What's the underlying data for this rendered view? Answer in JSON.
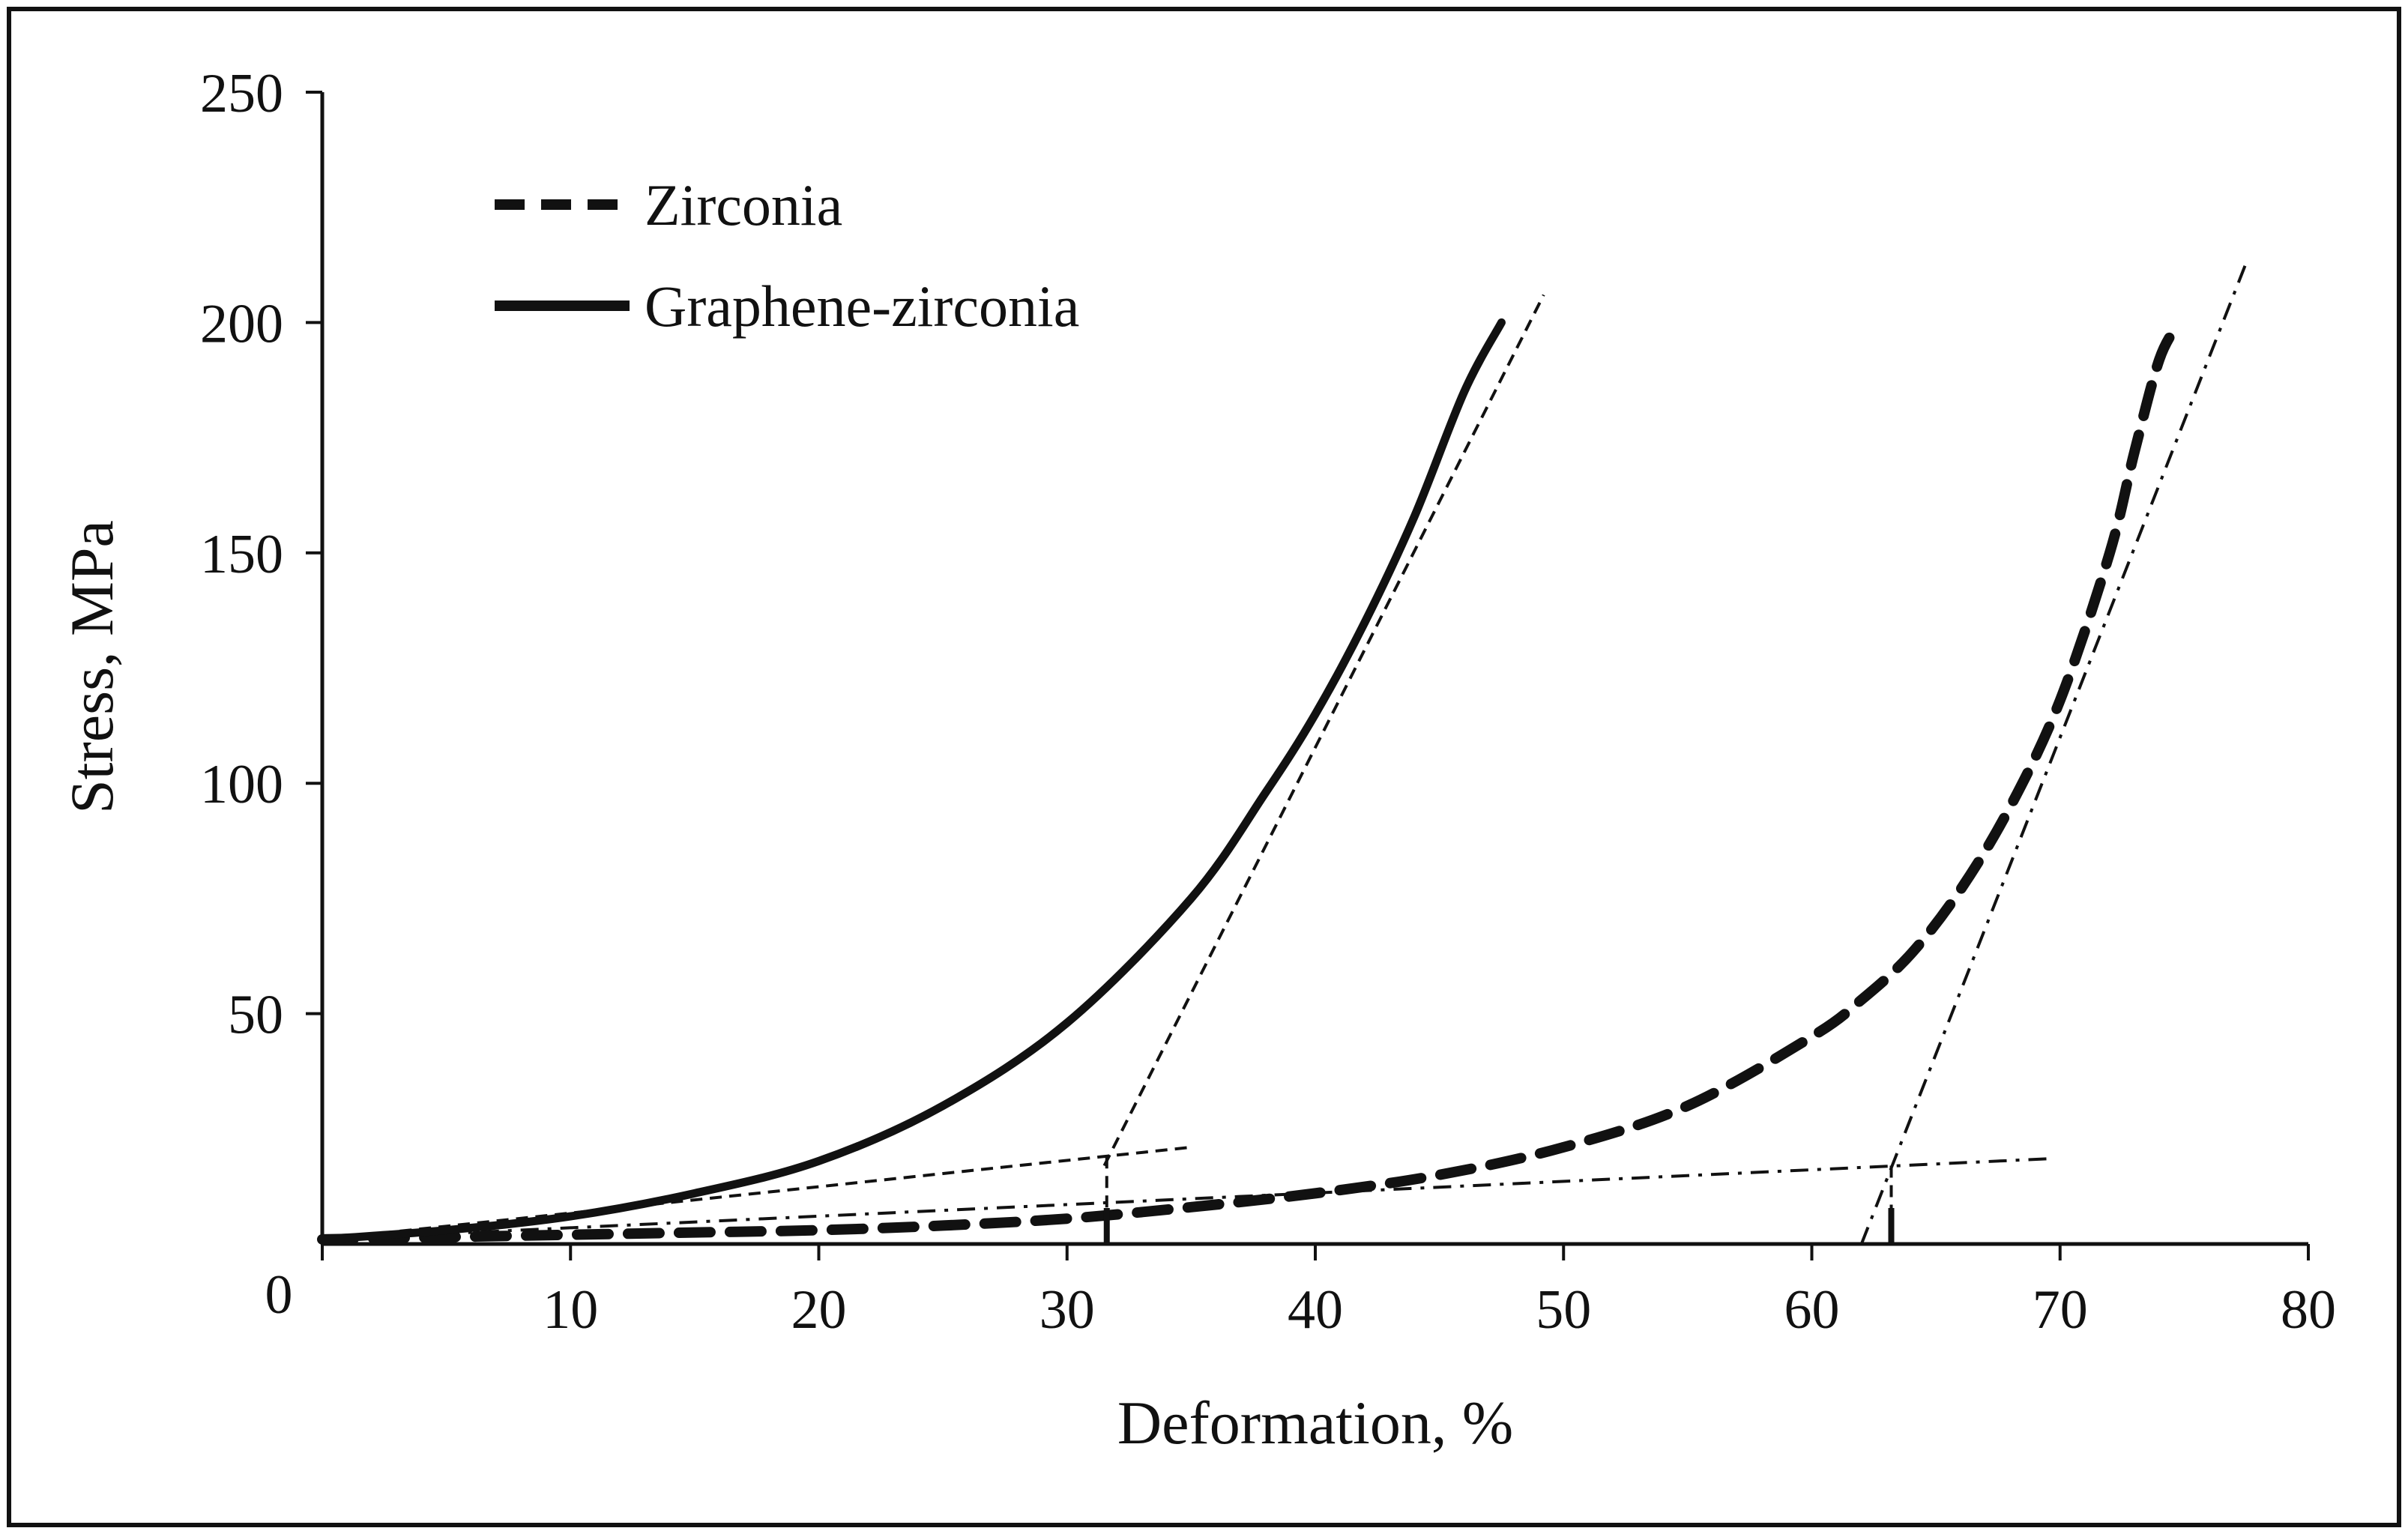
{
  "chart_data": {
    "type": "line",
    "title": "",
    "xlabel": "Deformation,  %",
    "ylabel": "Stress, MPa",
    "xlim": [
      0,
      80
    ],
    "ylim": [
      0,
      250
    ],
    "xticks": [
      0,
      10,
      20,
      30,
      40,
      50,
      60,
      70,
      80
    ],
    "yticks": [
      50,
      100,
      150,
      200,
      250
    ],
    "x_tick_labels": [
      "0",
      "10",
      "20",
      "30",
      "40",
      "50",
      "60",
      "70",
      "80"
    ],
    "y_tick_labels": [
      "50",
      "100",
      "150",
      "200",
      "250"
    ],
    "grid": false,
    "legend_position": "top-left",
    "series": [
      {
        "name": "Zirconia",
        "style": "dashed-thick",
        "color": "#111111",
        "x": [
          0,
          5,
          10,
          15,
          20,
          25,
          30,
          35,
          40,
          45,
          50,
          55,
          60,
          62,
          64,
          66,
          68,
          70,
          72,
          73,
          74,
          74.8
        ],
        "y": [
          1,
          1.5,
          2,
          2.5,
          3,
          4,
          5.5,
          8,
          11,
          15,
          21,
          30,
          45,
          53,
          63,
          77,
          95,
          118,
          150,
          172,
          192,
          200
        ]
      },
      {
        "name": "Graphene-zirconia",
        "style": "solid-thick",
        "color": "#111111",
        "x": [
          0,
          5,
          10,
          15,
          20,
          25,
          30,
          35,
          38,
          40,
          42,
          44,
          46,
          47.5
        ],
        "y": [
          1,
          3,
          6,
          11,
          18,
          30,
          48,
          75,
          98,
          115,
          135,
          158,
          185,
          200
        ]
      }
    ],
    "construction_lines": [
      {
        "kind": "tangent-upper",
        "series": "Graphene-zirconia",
        "style": "dashed-thin",
        "x": [
          31.5,
          49.2
        ],
        "y": [
          17,
          206
        ]
      },
      {
        "kind": "tangent-lower",
        "series": "Graphene-zirconia",
        "style": "dashed-thin",
        "x": [
          0,
          35
        ],
        "y": [
          1,
          21
        ]
      },
      {
        "kind": "drop-to-x",
        "series": "Graphene-zirconia",
        "style": "dashed-thin",
        "x": [
          31.6,
          31.6
        ],
        "y": [
          19,
          0
        ]
      },
      {
        "kind": "tangent-upper",
        "series": "Zirconia",
        "style": "dash-dot-thin",
        "x": [
          62,
          77.5
        ],
        "y": [
          0,
          213
        ]
      },
      {
        "kind": "tangent-lower",
        "series": "Zirconia",
        "style": "dash-dot-thin",
        "x": [
          0,
          69.5
        ],
        "y": [
          1,
          18.5
        ]
      },
      {
        "kind": "drop-to-x",
        "series": "Zirconia",
        "style": "dashed-thin",
        "x": [
          63.2,
          63.2
        ],
        "y": [
          17,
          0
        ]
      }
    ],
    "markers": [
      {
        "series": "Graphene-zirconia",
        "x": 31.6,
        "y": 0
      },
      {
        "series": "Zirconia",
        "x": 63.2,
        "y": 0
      }
    ]
  }
}
